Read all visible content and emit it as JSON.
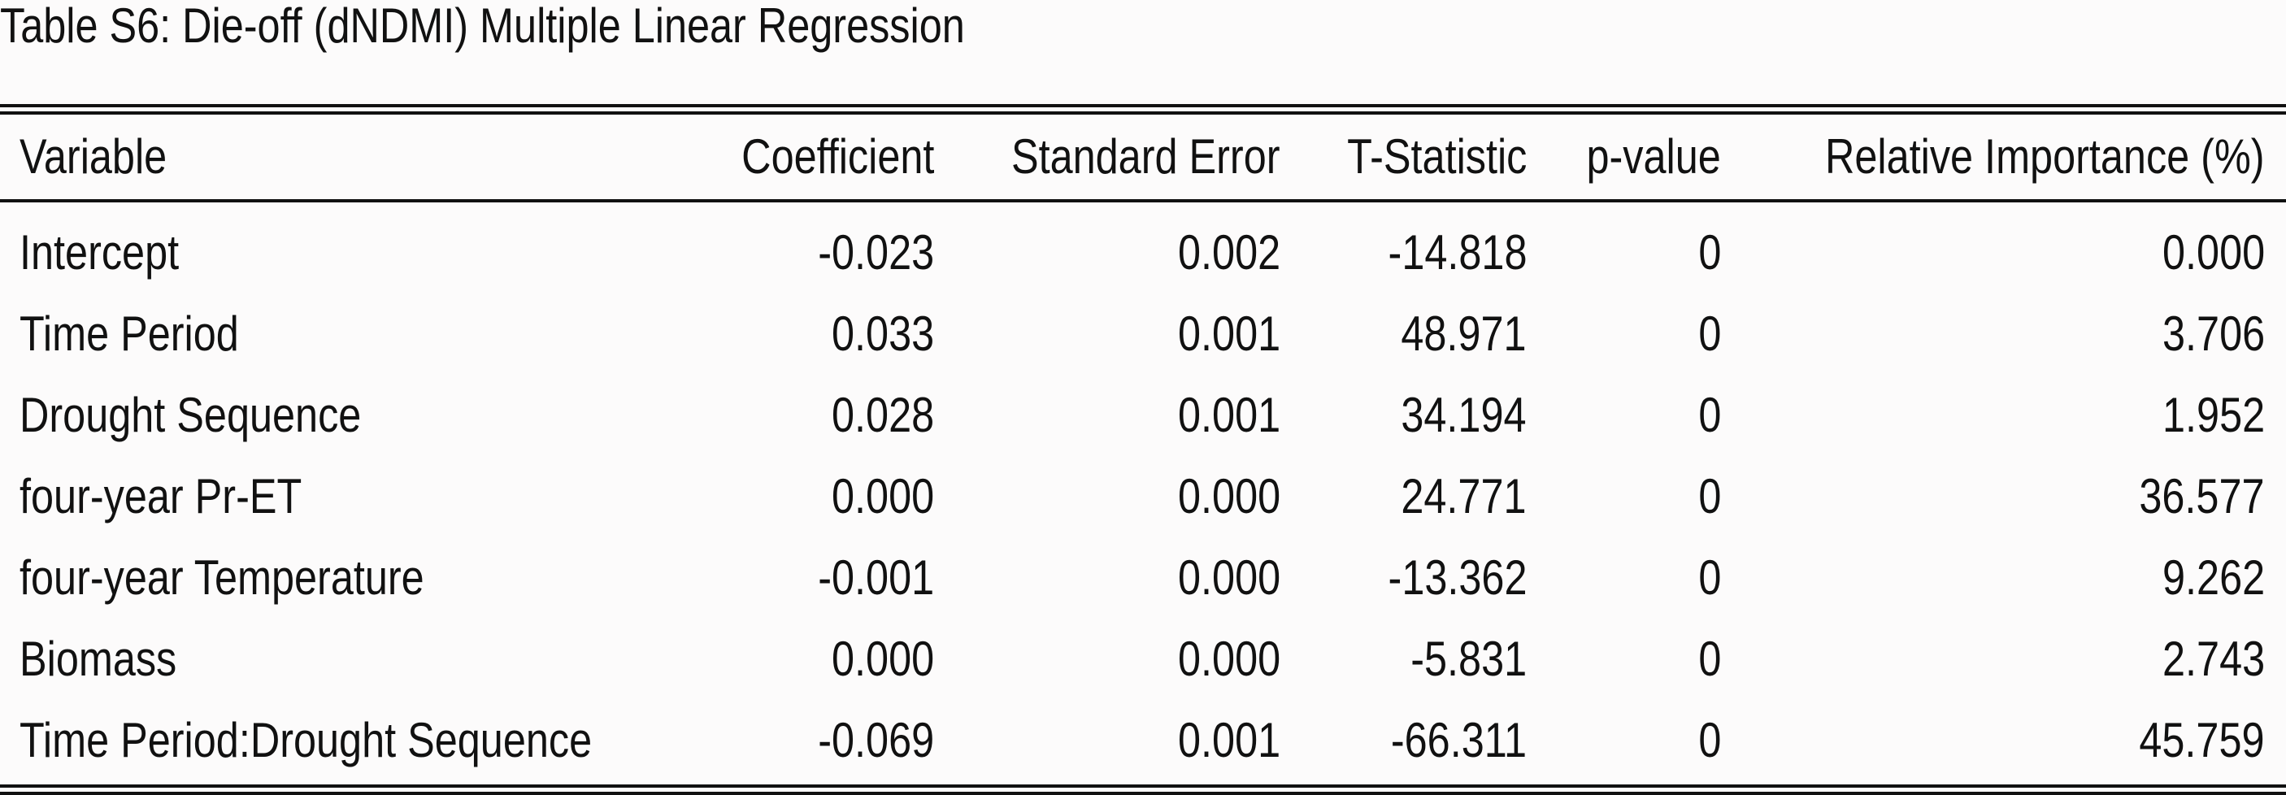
{
  "caption": "Table S6: Die-off (dNDMI) Multiple Linear Regression",
  "table": {
    "headers": [
      "Variable",
      "Coefficient",
      "Standard Error",
      "T-Statistic",
      "p-value",
      "Relative Importance (%)"
    ],
    "rows": [
      [
        "Intercept",
        "-0.023",
        "0.002",
        "-14.818",
        "0",
        "0.000"
      ],
      [
        "Time Period",
        "0.033",
        "0.001",
        "48.971",
        "0",
        "3.706"
      ],
      [
        "Drought Sequence",
        "0.028",
        "0.001",
        "34.194",
        "0",
        "1.952"
      ],
      [
        "four-year Pr-ET",
        "0.000",
        "0.000",
        "24.771",
        "0",
        "36.577"
      ],
      [
        "four-year Temperature",
        "-0.001",
        "0.000",
        "-13.362",
        "0",
        "9.262"
      ],
      [
        "Biomass",
        "0.000",
        "0.000",
        "-5.831",
        "0",
        "2.743"
      ],
      [
        "Time Period:Drought Sequence",
        "-0.069",
        "0.001",
        "-66.311",
        "0",
        "45.759"
      ]
    ]
  }
}
